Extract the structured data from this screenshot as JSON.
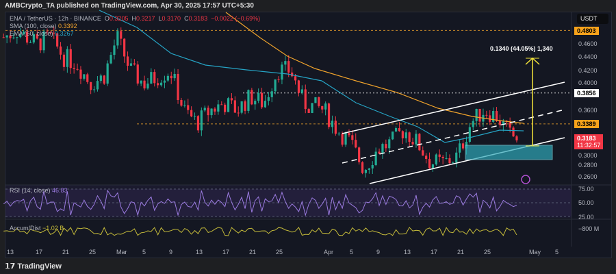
{
  "header": {
    "publisher": "AMBCrypto_TA published on TradingView.com, Apr 30, 2025 17:57 UTC+5:30"
  },
  "legend": {
    "symbol": "ENA / TetherUS · 12h · BINANCE",
    "o_label": "O",
    "o": "0.3205",
    "h_label": "H",
    "h": "0.3217",
    "l_label": "L",
    "l": "0.3170",
    "c_label": "C",
    "c": "0.3183",
    "change": "−0.0022 (−0.69%)",
    "sma_label": "SMA (100, close)",
    "sma_value": "0.3392",
    "ema_label": "EMA (50, close)",
    "ema_value": "0.3267",
    "rsi_label": "RSI (14, close)",
    "rsi_value": "46.83",
    "ad_label": "Accum/Dist",
    "ad_value": "−1.02 B"
  },
  "price_axis": {
    "currency": "USDT",
    "ticks": [
      "0.4600",
      "0.4400",
      "0.4200",
      "0.4000",
      "0.3600",
      "0.3000",
      "0.2800",
      "0.2600"
    ],
    "tags": [
      {
        "text": "0.4803",
        "color": "#f7a21b"
      },
      {
        "text": "0.3856",
        "color": "#ffffff"
      },
      {
        "text": "0.3389",
        "color": "#f7a21b"
      }
    ],
    "last_price": "0.3183",
    "countdown": "11:32:57",
    "last_color": "#f23645"
  },
  "rsi_axis": [
    "75.00",
    "50.00",
    "25.00"
  ],
  "ad_axis": [
    "−800 M"
  ],
  "time_axis": [
    "13",
    "17",
    "21",
    "25",
    "Mar",
    "5",
    "9",
    "13",
    "17",
    "21",
    "25",
    "Apr",
    "5",
    "9",
    "13",
    "17",
    "21",
    "25",
    "May",
    "5"
  ],
  "measure": {
    "text": "0.1340 (44.05%) 1,340"
  },
  "footer": {
    "brand": "TradingView"
  },
  "chart_data": {
    "type": "candlestick",
    "interval": "12h",
    "x_range": [
      "Feb 12",
      "May 7"
    ],
    "ylim": [
      0.25,
      0.49
    ],
    "price_path": [
      [
        "Feb 12",
        0.47
      ],
      [
        "Feb 14",
        0.48
      ],
      [
        "Feb 17",
        0.46
      ],
      [
        "Feb 19",
        0.47
      ],
      [
        "Feb 21",
        0.44
      ],
      [
        "Feb 23",
        0.43
      ],
      [
        "Feb 25",
        0.4
      ],
      [
        "Feb 27",
        0.41
      ],
      [
        "Mar 1",
        0.47
      ],
      [
        "Mar 3",
        0.42
      ],
      [
        "Mar 5",
        0.4
      ],
      [
        "Mar 7",
        0.41
      ],
      [
        "Mar 9",
        0.42
      ],
      [
        "Mar 11",
        0.36
      ],
      [
        "Mar 13",
        0.34
      ],
      [
        "Mar 15",
        0.36
      ],
      [
        "Mar 17",
        0.37
      ],
      [
        "Mar 19",
        0.36
      ],
      [
        "Mar 21",
        0.38
      ],
      [
        "Mar 23",
        0.37
      ],
      [
        "Mar 25",
        0.42
      ],
      [
        "Mar 27",
        0.42
      ],
      [
        "Mar 29",
        0.37
      ],
      [
        "Apr 1",
        0.36
      ],
      [
        "Apr 3",
        0.33
      ],
      [
        "Apr 5",
        0.31
      ],
      [
        "Apr 7",
        0.27
      ],
      [
        "Apr 9",
        0.3
      ],
      [
        "Apr 11",
        0.31
      ],
      [
        "Apr 13",
        0.33
      ],
      [
        "Apr 15",
        0.31
      ],
      [
        "Apr 17",
        0.28
      ],
      [
        "Apr 19",
        0.28
      ],
      [
        "Apr 21",
        0.29
      ],
      [
        "Apr 23",
        0.34
      ],
      [
        "Apr 25",
        0.36
      ],
      [
        "Apr 27",
        0.35
      ],
      [
        "Apr 29",
        0.32
      ],
      [
        "Apr 30",
        0.3183
      ]
    ],
    "levels": [
      0.4803,
      0.3856,
      0.3389
    ],
    "rsi_range": [
      25,
      75
    ],
    "colors": {
      "up": "#22ab94",
      "down": "#f23645",
      "sma": "#f0a32c",
      "ema": "#26a4c5",
      "rsi": "#9b7be0",
      "ad": "#c5bb3a",
      "zone": "#2fa8b8",
      "measure": "#f5e53b"
    }
  }
}
